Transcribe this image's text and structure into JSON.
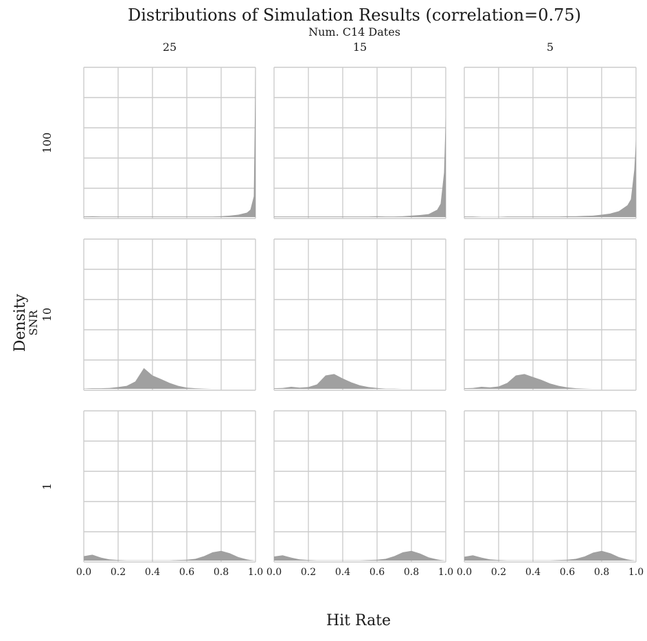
{
  "chart_data": {
    "type": "area",
    "title": "Distributions of Simulation Results (correlation=0.75)",
    "facet_col_title": "Num. C14 Dates",
    "facet_row_title": "SNR",
    "xlabel": "Hit Rate",
    "ylabel": "Density",
    "columns": [
      "25",
      "15",
      "5"
    ],
    "rows": [
      "100",
      "10",
      "1"
    ],
    "xlim": [
      0,
      1
    ],
    "x_ticks": [
      "0.0",
      "0.2",
      "0.4",
      "0.6",
      "0.8",
      "1.0"
    ],
    "y_ticks_visible": false,
    "grid": true,
    "fill_color": "#a0a0a0",
    "grid_color": "#cccccc",
    "x": [
      0.0,
      0.05,
      0.1,
      0.15,
      0.2,
      0.25,
      0.3,
      0.35,
      0.4,
      0.45,
      0.5,
      0.55,
      0.6,
      0.65,
      0.7,
      0.75,
      0.8,
      0.85,
      0.9,
      0.95,
      0.97,
      0.99,
      1.0
    ],
    "panels": [
      {
        "row": "100",
        "col": "25",
        "ymax": 5.0,
        "y": [
          0.02,
          0.03,
          0.02,
          0.02,
          0.02,
          0.02,
          0.02,
          0.02,
          0.02,
          0.02,
          0.02,
          0.02,
          0.02,
          0.02,
          0.02,
          0.02,
          0.03,
          0.05,
          0.08,
          0.15,
          0.25,
          0.7,
          5.0
        ]
      },
      {
        "row": "100",
        "col": "15",
        "ymax": 5.0,
        "y": [
          0.02,
          0.02,
          0.02,
          0.02,
          0.02,
          0.02,
          0.02,
          0.02,
          0.02,
          0.02,
          0.02,
          0.02,
          0.03,
          0.02,
          0.02,
          0.03,
          0.05,
          0.07,
          0.1,
          0.25,
          0.45,
          1.5,
          3.4
        ]
      },
      {
        "row": "100",
        "col": "5",
        "ymax": 5.0,
        "y": [
          0.02,
          0.02,
          0.01,
          0.01,
          0.01,
          0.02,
          0.02,
          0.02,
          0.02,
          0.02,
          0.02,
          0.02,
          0.03,
          0.03,
          0.04,
          0.05,
          0.08,
          0.12,
          0.2,
          0.4,
          0.6,
          1.6,
          2.6
        ]
      },
      {
        "row": "10",
        "col": "25",
        "ymax": 5.0,
        "y": [
          0.01,
          0.02,
          0.02,
          0.03,
          0.06,
          0.1,
          0.25,
          0.7,
          0.45,
          0.33,
          0.2,
          0.1,
          0.04,
          0.02,
          0.01,
          0.0,
          0.0,
          0.0,
          0.0,
          0.0,
          0.0,
          0.0,
          0.0
        ]
      },
      {
        "row": "10",
        "col": "15",
        "ymax": 5.0,
        "y": [
          0.02,
          0.03,
          0.07,
          0.04,
          0.06,
          0.15,
          0.45,
          0.5,
          0.35,
          0.22,
          0.12,
          0.06,
          0.03,
          0.01,
          0.01,
          0.0,
          0.0,
          0.0,
          0.0,
          0.0,
          0.0,
          0.0,
          0.0
        ]
      },
      {
        "row": "10",
        "col": "5",
        "ymax": 5.0,
        "y": [
          0.02,
          0.03,
          0.07,
          0.05,
          0.08,
          0.2,
          0.45,
          0.5,
          0.4,
          0.3,
          0.18,
          0.1,
          0.05,
          0.02,
          0.01,
          0.0,
          0.0,
          0.0,
          0.0,
          0.0,
          0.0,
          0.0,
          0.0
        ]
      },
      {
        "row": "1",
        "col": "25",
        "ymax": 5.0,
        "y": [
          0.15,
          0.2,
          0.1,
          0.04,
          0.02,
          0.01,
          0.01,
          0.01,
          0.01,
          0.01,
          0.01,
          0.02,
          0.03,
          0.06,
          0.15,
          0.28,
          0.33,
          0.25,
          0.12,
          0.04,
          0.02,
          0.01,
          0.0
        ]
      },
      {
        "row": "1",
        "col": "15",
        "ymax": 5.0,
        "y": [
          0.14,
          0.18,
          0.1,
          0.04,
          0.02,
          0.01,
          0.01,
          0.01,
          0.01,
          0.01,
          0.01,
          0.02,
          0.03,
          0.06,
          0.15,
          0.28,
          0.33,
          0.24,
          0.11,
          0.04,
          0.02,
          0.01,
          0.0
        ]
      },
      {
        "row": "1",
        "col": "5",
        "ymax": 5.0,
        "y": [
          0.13,
          0.18,
          0.1,
          0.04,
          0.02,
          0.01,
          0.01,
          0.01,
          0.01,
          0.01,
          0.01,
          0.02,
          0.03,
          0.06,
          0.14,
          0.27,
          0.33,
          0.25,
          0.12,
          0.04,
          0.02,
          0.01,
          0.0
        ]
      }
    ]
  }
}
